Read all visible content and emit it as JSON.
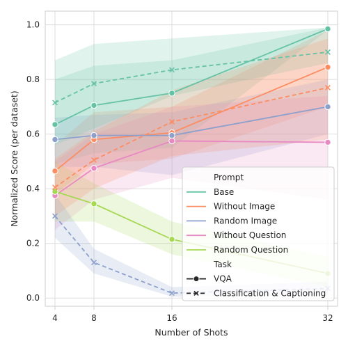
{
  "chart_data": {
    "type": "line",
    "title": "",
    "xlabel": "Number of Shots",
    "ylabel": "Normalized Score (per dataset)",
    "x": [
      4,
      8,
      16,
      32
    ],
    "xticks": [
      "4",
      "8",
      "16",
      "32"
    ],
    "xlim": [
      3,
      33
    ],
    "ylim": [
      -0.03,
      1.05
    ],
    "yticks": [
      "0.0",
      "0.2",
      "0.4",
      "0.6",
      "0.8",
      "1.0"
    ],
    "grid": true,
    "legend": {
      "placement": "bottom-right",
      "hue_title": "Prompt",
      "style_title": "Task"
    },
    "prompts": [
      {
        "name": "Base",
        "color": "#66c2a5"
      },
      {
        "name": "Without Image",
        "color": "#fc8d62"
      },
      {
        "name": "Random Image",
        "color": "#8da0cb"
      },
      {
        "name": "Without Question",
        "color": "#e78ac3"
      },
      {
        "name": "Random Question",
        "color": "#a6d854"
      }
    ],
    "tasks": [
      {
        "name": "VQA",
        "dash": "solid",
        "marker": "circle"
      },
      {
        "name": "Classification & Captioning",
        "dash": "dashed",
        "marker": "x"
      }
    ],
    "series": [
      {
        "prompt": "Base",
        "task": "VQA",
        "values": [
          0.635,
          0.705,
          0.75,
          0.985
        ],
        "lower": [
          0.49,
          0.53,
          0.55,
          0.98
        ],
        "upper": [
          0.8,
          0.85,
          0.87,
          0.99
        ]
      },
      {
        "prompt": "Without Image",
        "task": "VQA",
        "values": [
          0.465,
          0.58,
          0.605,
          0.845
        ],
        "lower": [
          0.38,
          0.49,
          0.51,
          0.7
        ],
        "upper": [
          0.56,
          0.68,
          0.7,
          0.98
        ]
      },
      {
        "prompt": "Random Image",
        "task": "VQA",
        "values": [
          0.58,
          0.595,
          0.595,
          0.7
        ],
        "lower": [
          0.48,
          0.48,
          0.45,
          0.6
        ],
        "upper": [
          0.66,
          0.67,
          0.68,
          0.8
        ]
      },
      {
        "prompt": "Without Question",
        "task": "VQA",
        "values": [
          0.375,
          0.475,
          0.575,
          0.57
        ],
        "lower": [
          0.25,
          0.36,
          0.44,
          0.36
        ],
        "upper": [
          0.5,
          0.6,
          0.7,
          0.74
        ]
      },
      {
        "prompt": "Random Question",
        "task": "VQA",
        "values": [
          0.39,
          0.345,
          0.215,
          0.09
        ],
        "lower": [
          0.28,
          0.28,
          0.16,
          0.04
        ],
        "upper": [
          0.5,
          0.42,
          0.28,
          0.15
        ]
      },
      {
        "prompt": "Base",
        "task": "Classification & Captioning",
        "values": [
          0.715,
          0.785,
          0.835,
          0.9
        ],
        "lower": [
          0.56,
          0.62,
          0.74,
          0.86
        ],
        "upper": [
          0.87,
          0.93,
          0.95,
          0.99
        ]
      },
      {
        "prompt": "Without Image",
        "task": "Classification & Captioning",
        "values": [
          0.405,
          0.505,
          0.645,
          0.77
        ],
        "lower": [
          0.3,
          0.4,
          0.52,
          0.58
        ],
        "upper": [
          0.51,
          0.61,
          0.76,
          0.95
        ]
      },
      {
        "prompt": "Random Image",
        "task": "Classification & Captioning",
        "values": [
          0.3,
          0.13,
          0.018,
          0.035
        ],
        "lower": [
          0.22,
          0.09,
          0.005,
          0.01
        ],
        "upper": [
          0.38,
          0.18,
          0.04,
          0.06
        ]
      }
    ]
  }
}
